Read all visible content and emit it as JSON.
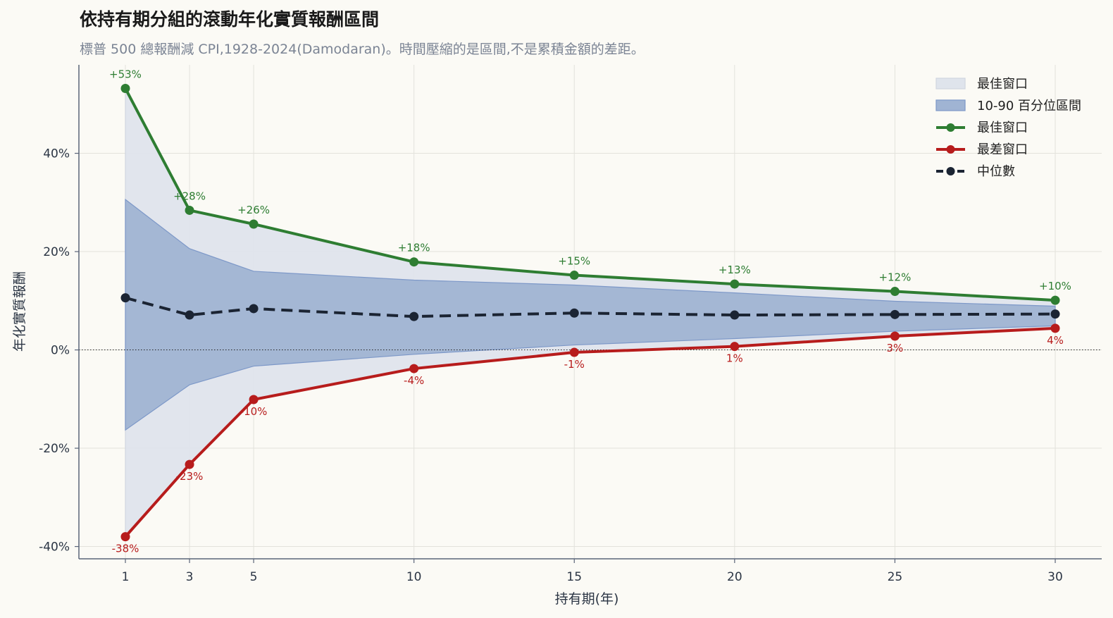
{
  "chart_data": {
    "type": "line",
    "title": "依持有期分組的滾動年化實質報酬區間",
    "subtitle": "標普 500 總報酬減 CPI,1928-2024(Damodaran)。時間壓縮的是區間,不是累積金額的差距。",
    "xlabel": "持有期(年)",
    "ylabel": "年化實質報酬",
    "x": [
      1,
      3,
      5,
      10,
      15,
      20,
      25,
      30
    ],
    "x_ticks": [
      "1",
      "3",
      "5",
      "10",
      "15",
      "20",
      "25",
      "30"
    ],
    "xlim": [
      -0.45,
      31.45
    ],
    "ylim": [
      -42.5,
      58
    ],
    "y_ticks": [
      -40,
      -20,
      0,
      20,
      40
    ],
    "y_tick_labels": [
      "-40%",
      "-20%",
      "0%",
      "20%",
      "40%"
    ],
    "grid": true,
    "zero_line": true,
    "legend_position": "top-right",
    "bands": [
      {
        "name": "最佳窗口",
        "upper": [
          53.2,
          28.4,
          25.6,
          17.9,
          15.2,
          13.4,
          11.9,
          10.1
        ],
        "lower": [
          -38.0,
          -23.3,
          -10.1,
          -3.8,
          -0.5,
          0.7,
          2.8,
          4.4
        ],
        "color": "#dfe4ec",
        "edge": "#d0d6e0"
      },
      {
        "name": "10-90 百分位區間",
        "upper": [
          30.6,
          20.6,
          16.0,
          14.2,
          13.2,
          11.6,
          9.9,
          8.9
        ],
        "lower": [
          -16.3,
          -7.1,
          -3.3,
          -0.9,
          1.0,
          2.3,
          3.8,
          4.9
        ],
        "color": "#a0b4d3",
        "edge": "#7d98c8"
      }
    ],
    "series": [
      {
        "name": "最佳窗口",
        "values": [
          53.2,
          28.4,
          25.6,
          17.9,
          15.2,
          13.4,
          11.9,
          10.1
        ],
        "color": "#2e7d32",
        "dash": false,
        "labels": [
          "+53%",
          "+28%",
          "+26%",
          "+18%",
          "+15%",
          "+13%",
          "+12%",
          "+10%"
        ]
      },
      {
        "name": "最差窗口",
        "values": [
          -38.0,
          -23.3,
          -10.1,
          -3.8,
          -0.5,
          0.7,
          2.8,
          4.4
        ],
        "color": "#b71c1c",
        "dash": false,
        "labels": [
          "-38%",
          "-23%",
          "-10%",
          "-4%",
          "-1%",
          "1%",
          "3%",
          "4%"
        ]
      },
      {
        "name": "中位數",
        "values": [
          10.6,
          7.1,
          8.4,
          6.8,
          7.5,
          7.1,
          7.2,
          7.3
        ],
        "color": "#1b2433",
        "dash": true,
        "labels": []
      }
    ]
  }
}
